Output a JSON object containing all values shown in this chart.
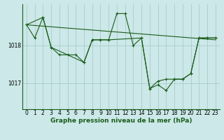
{
  "title": "Graphe pression niveau de la mer (hPa)",
  "bg_color": "#cce8e8",
  "plot_bg_color": "#cce8e8",
  "grid_color": "#aacccc",
  "line_color": "#1a5c1a",
  "xlim": [
    -0.5,
    23.5
  ],
  "ylim": [
    1016.3,
    1019.1
  ],
  "yticks": [
    1017,
    1018
  ],
  "xticks": [
    0,
    1,
    2,
    3,
    4,
    5,
    6,
    7,
    8,
    9,
    10,
    11,
    12,
    13,
    14,
    15,
    16,
    17,
    18,
    19,
    20,
    21,
    22,
    23
  ],
  "series_main": {
    "x": [
      0,
      1,
      2,
      3,
      4,
      5,
      6,
      7,
      8,
      9,
      10,
      11,
      12,
      13,
      14,
      15,
      16,
      17,
      18,
      19,
      20,
      21,
      22,
      23
    ],
    "y": [
      1018.55,
      1018.2,
      1018.75,
      1017.95,
      1017.75,
      1017.75,
      1017.75,
      1017.55,
      1018.15,
      1018.15,
      1018.15,
      1018.85,
      1018.85,
      1018.0,
      1018.2,
      1016.85,
      1017.05,
      1017.1,
      1017.1,
      1017.1,
      1017.25,
      1018.2,
      1018.2,
      1018.2
    ]
  },
  "series_secondary": {
    "x": [
      0,
      2,
      3,
      7,
      8,
      9,
      10,
      14,
      15,
      16,
      17,
      18,
      19,
      20,
      21,
      22,
      23
    ],
    "y": [
      1018.55,
      1018.75,
      1017.95,
      1017.55,
      1018.15,
      1018.15,
      1018.15,
      1018.2,
      1016.85,
      1016.95,
      1016.8,
      1017.1,
      1017.1,
      1017.25,
      1018.2,
      1018.2,
      1018.2
    ]
  },
  "trend_x": [
    0,
    23
  ],
  "trend_y": [
    1018.55,
    1018.15
  ],
  "tick_fontsize": 5.5,
  "title_fontsize": 6.5
}
